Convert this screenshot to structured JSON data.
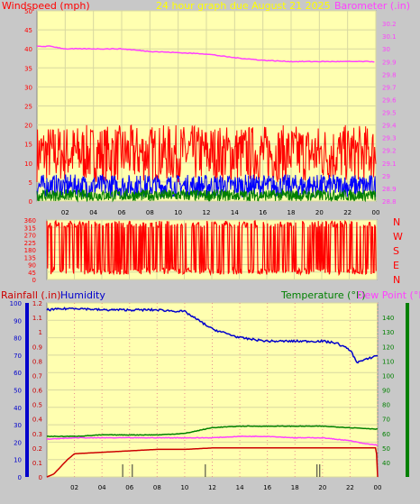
{
  "header": {
    "left_title": "Windspeed (mph)",
    "center_title": "24 hour graph due   August 21 2025",
    "right_title": "Barometer (.in)"
  },
  "bottom_header": {
    "rainfall_label": "Rainfall (.in)",
    "humidity_label": "Humidity",
    "temperature_label": "Temperature (°F)",
    "dewpoint_label": "Dew Point (°F)"
  },
  "direction_labels": [
    "N",
    "W",
    "S",
    "E",
    "N"
  ],
  "colors": {
    "background": "#c8c8c8",
    "plot_bg": "#ffffb0",
    "grid": "#d8d8a0",
    "wind_gust": "#ff0000",
    "wind_avg": "#0000ff",
    "wind_low": "#008000",
    "barometer": "#ff40ff",
    "direction": "#ff0000",
    "humidity": "#0000cc",
    "temperature": "#008000",
    "dewpoint": "#ff40ff",
    "rainfall": "#cc0000",
    "rain_rate": "#000000"
  },
  "chart_data": [
    {
      "type": "line",
      "name": "wind-and-barometer",
      "x_ticks": [
        "02",
        "04",
        "06",
        "08",
        "10",
        "12",
        "14",
        "16",
        "18",
        "20",
        "22",
        "00"
      ],
      "x_range_hours": [
        0,
        24
      ],
      "left_axis": {
        "label": "Windspeed (mph)",
        "ylim": [
          0,
          50
        ],
        "ticks": [
          0,
          5,
          10,
          15,
          20,
          25,
          30,
          35,
          40,
          45,
          50
        ]
      },
      "right_axis": {
        "label": "Barometer (.in)",
        "ylim": [
          28.8,
          30.3
        ],
        "ticks": [
          "28.8",
          "28.9",
          "29",
          "29.1",
          "29.2",
          "29.3",
          "29.4",
          "29.5",
          "29.6",
          "29.7",
          "29.8",
          "29.9",
          "30",
          "30.1",
          "30.2"
        ]
      },
      "barometer": {
        "x": [
          0,
          1,
          2,
          4,
          6,
          8,
          10,
          12,
          14,
          16,
          18,
          20,
          22,
          24
        ],
        "y": [
          30.02,
          30.02,
          30.0,
          30.0,
          30.0,
          29.98,
          29.97,
          29.96,
          29.93,
          29.91,
          29.9,
          29.9,
          29.9,
          29.9
        ]
      },
      "wind_gust_band": {
        "min": 5,
        "max": 20
      },
      "wind_avg_band": {
        "min": 1,
        "max": 7
      },
      "wind_low_band": {
        "min": 0,
        "max": 3
      },
      "grid": true
    },
    {
      "type": "line",
      "name": "wind-direction",
      "x_ticks": [
        "02",
        "04",
        "06",
        "08",
        "10",
        "12",
        "14",
        "16",
        "18",
        "20",
        "22",
        "00"
      ],
      "y_axis": {
        "ylim": [
          0,
          360
        ],
        "ticks": [
          0,
          45,
          90,
          135,
          180,
          225,
          270,
          315,
          360
        ]
      },
      "direction_band": {
        "min": 30,
        "max": 355
      }
    },
    {
      "type": "line",
      "name": "rain-humidity-temperature",
      "x_ticks": [
        "02",
        "04",
        "06",
        "08",
        "10",
        "12",
        "14",
        "16",
        "18",
        "20",
        "22",
        "00"
      ],
      "humidity_axis": {
        "ylim": [
          0,
          100
        ],
        "ticks": [
          0,
          10,
          20,
          30,
          40,
          50,
          60,
          70,
          80,
          90,
          100
        ]
      },
      "rainfall_axis": {
        "ylim": [
          0,
          1.2
        ],
        "ticks": [
          "0",
          "0.1",
          "0.2",
          "0.3",
          "0.4",
          "0.5",
          "0.6",
          "0.7",
          "0.8",
          "0.9",
          "1",
          "1.1",
          "1.2"
        ]
      },
      "temperature_axis": {
        "ylim": [
          30,
          150
        ],
        "ticks": [
          40,
          50,
          60,
          70,
          80,
          90,
          100,
          110,
          120,
          130,
          140
        ]
      },
      "humidity": {
        "x": [
          0,
          2,
          4,
          6,
          8,
          10,
          11,
          12,
          14,
          16,
          18,
          20,
          21,
          22,
          22.5,
          23,
          24
        ],
        "y": [
          96,
          97,
          96,
          96,
          96,
          95,
          90,
          85,
          80,
          78,
          78,
          78,
          77,
          73,
          66,
          67,
          70
        ]
      },
      "temperature": {
        "x": [
          0,
          2,
          4,
          6,
          8,
          10,
          11,
          12,
          14,
          16,
          18,
          20,
          22,
          24
        ],
        "y": [
          58,
          58,
          59,
          59,
          59,
          60,
          62,
          64,
          65,
          65,
          65,
          65,
          64,
          63
        ]
      },
      "dewpoint": {
        "x": [
          0,
          2,
          4,
          6,
          8,
          10,
          12,
          14,
          16,
          18,
          20,
          22,
          23,
          24
        ],
        "y": [
          56,
          57,
          57,
          57,
          57,
          57,
          57,
          58,
          58,
          57,
          57,
          55,
          53,
          52
        ]
      },
      "rainfall": {
        "x": [
          0,
          0.5,
          1,
          1.5,
          2,
          4,
          6,
          8,
          10,
          12,
          14,
          16,
          18,
          20,
          22,
          23,
          23.9,
          24
        ],
        "y": [
          0,
          0.02,
          0.07,
          0.12,
          0.16,
          0.17,
          0.18,
          0.19,
          0.19,
          0.2,
          0.2,
          0.2,
          0.2,
          0.2,
          0.2,
          0.2,
          0.2,
          0.0
        ]
      },
      "rain_rate_ticks_x": [
        5.5,
        6.2,
        11.5,
        19.6,
        19.8
      ]
    }
  ]
}
